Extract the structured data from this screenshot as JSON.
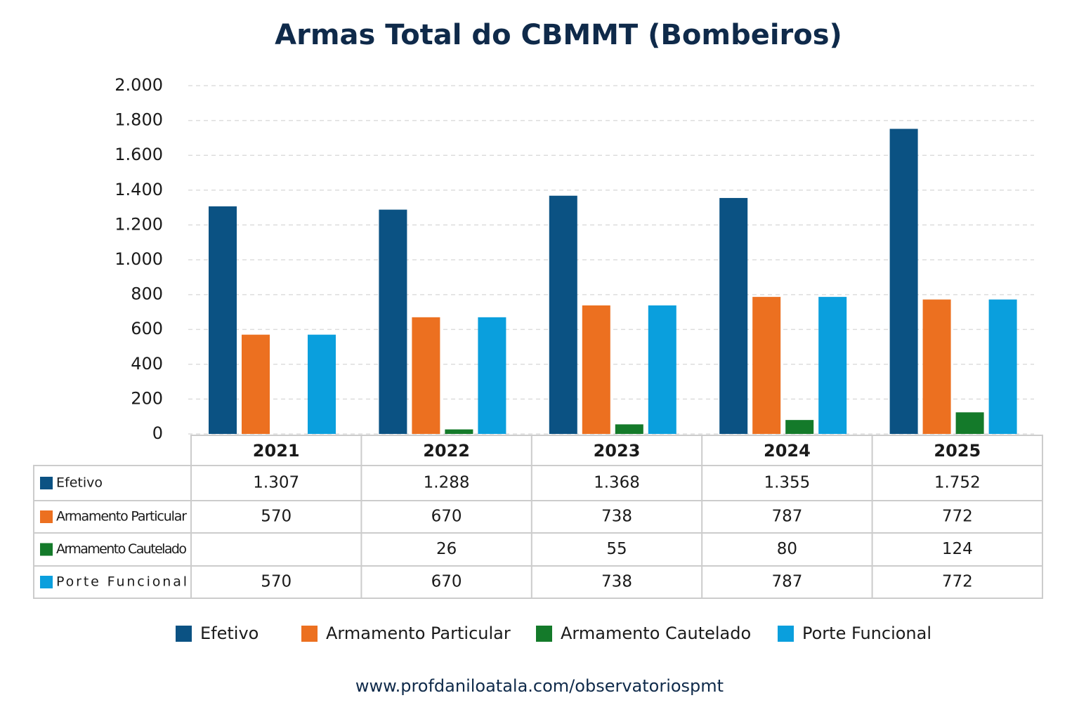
{
  "chart_data": {
    "type": "bar",
    "title": "Armas Total do CBMMT (Bombeiros)",
    "categories": [
      "2021",
      "2022",
      "2023",
      "2024",
      "2025"
    ],
    "series": [
      {
        "name": "Efetivo",
        "color": "#0b5283",
        "values": [
          1307,
          1288,
          1368,
          1355,
          1752
        ],
        "value_labels": [
          "1.307",
          "1.288",
          "1.368",
          "1.355",
          "1.752"
        ]
      },
      {
        "name": "Armamento Particular",
        "color": "#ec7020",
        "values": [
          570,
          670,
          738,
          787,
          772
        ]
      },
      {
        "name": "Armamento Cautelado",
        "color": "#147a2a",
        "values": [
          null,
          26,
          55,
          80,
          124
        ]
      },
      {
        "name": "Porte Funcional",
        "color": "#0a9fdd",
        "values": [
          570,
          670,
          738,
          787,
          772
        ]
      }
    ],
    "ylim": [
      0,
      2000
    ],
    "yticks": [
      0,
      200,
      400,
      600,
      800,
      {
        "value": 1000,
        "label": "1.000"
      },
      {
        "value": 1200,
        "label": "1.200"
      },
      {
        "value": 1400,
        "label": "1.400"
      },
      {
        "value": 1600,
        "label": "1.600"
      },
      {
        "value": 1800,
        "label": "1.800"
      },
      {
        "value": 2000,
        "label": "2.000"
      }
    ],
    "grid": true,
    "source": "www.profdaniloatala.com/observatoriospmt"
  }
}
